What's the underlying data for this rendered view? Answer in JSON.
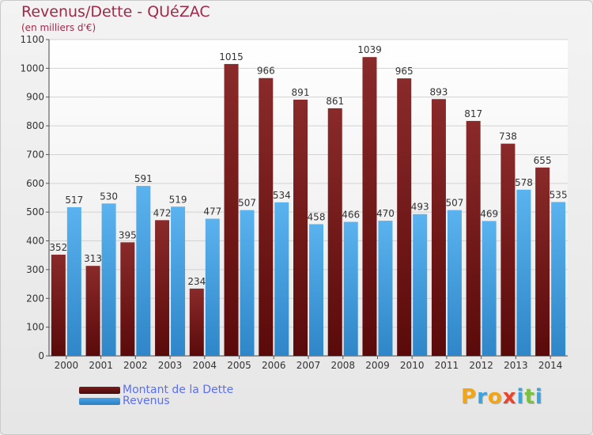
{
  "header": {
    "title": "Revenus/Dette - QUéZAC",
    "subtitle": "(en milliers d'€)"
  },
  "legend": {
    "items": [
      {
        "label": "Montant de la Dette",
        "color": "#7a1a1a"
      },
      {
        "label": "Revenus",
        "color": "#4aa3e6"
      }
    ]
  },
  "brand": {
    "letters": [
      "P",
      "r",
      "o",
      "x",
      "i",
      "t",
      "i"
    ],
    "colors": [
      "#f2a516",
      "#3aa4dc",
      "#f2a516",
      "#e8452c",
      "#3aa4dc",
      "#7ac143",
      "#3aa4dc"
    ]
  },
  "chart_data": {
    "type": "bar",
    "categories": [
      "2000",
      "2001",
      "2002",
      "2003",
      "2004",
      "2005",
      "2006",
      "2007",
      "2008",
      "2009",
      "2010",
      "2011",
      "2012",
      "2013",
      "2014"
    ],
    "series": [
      {
        "name": "Montant de la Dette",
        "color": "#7a1a1a",
        "values": [
          352,
          313,
          395,
          472,
          234,
          1015,
          966,
          891,
          861,
          1039,
          965,
          893,
          817,
          738,
          655
        ]
      },
      {
        "name": "Revenus",
        "color": "#4aa3e6",
        "values": [
          517,
          530,
          591,
          519,
          477,
          507,
          534,
          458,
          466,
          470,
          493,
          507,
          469,
          578,
          535
        ]
      }
    ],
    "yticks": [
      0,
      100,
      200,
      300,
      400,
      500,
      600,
      700,
      800,
      900,
      1000,
      1100
    ],
    "ylim": [
      0,
      1100
    ],
    "grid": true,
    "legend_position": "bottom-left"
  }
}
